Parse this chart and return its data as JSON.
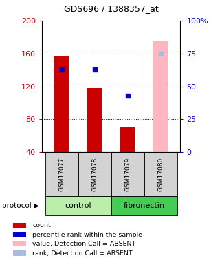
{
  "title": "GDS696 / 1388357_at",
  "samples": [
    "GSM17077",
    "GSM17078",
    "GSM17079",
    "GSM17080"
  ],
  "red_bar_values": [
    157,
    118,
    70,
    null
  ],
  "pink_bar_values": [
    null,
    null,
    null,
    175
  ],
  "blue_square_values": [
    63,
    63,
    43,
    null
  ],
  "light_blue_square_values": [
    null,
    null,
    null,
    75
  ],
  "ylim_left": [
    40,
    200
  ],
  "ylim_right": [
    0,
    100
  ],
  "yticks_left": [
    40,
    80,
    120,
    160,
    200
  ],
  "yticks_right": [
    0,
    25,
    50,
    75,
    100
  ],
  "red_color": "#cc0000",
  "pink_color": "#ffb6c1",
  "blue_color": "#0000cc",
  "light_blue_color": "#aabbdd",
  "bar_width": 0.45,
  "sample_bg_color": "#d3d3d3",
  "control_color": "#bbeeaa",
  "fibronectin_color": "#44cc55",
  "legend_items": [
    {
      "label": "count",
      "color": "#cc0000"
    },
    {
      "label": "percentile rank within the sample",
      "color": "#0000cc"
    },
    {
      "label": "value, Detection Call = ABSENT",
      "color": "#ffb6c1"
    },
    {
      "label": "rank, Detection Call = ABSENT",
      "color": "#aabbdd"
    }
  ],
  "proto_boxes": [
    {
      "xmin": -0.5,
      "xmax": 1.5,
      "label": "control",
      "color": "#bbeeaa"
    },
    {
      "xmin": 1.5,
      "xmax": 3.5,
      "label": "fibronectin",
      "color": "#44cc55"
    }
  ]
}
